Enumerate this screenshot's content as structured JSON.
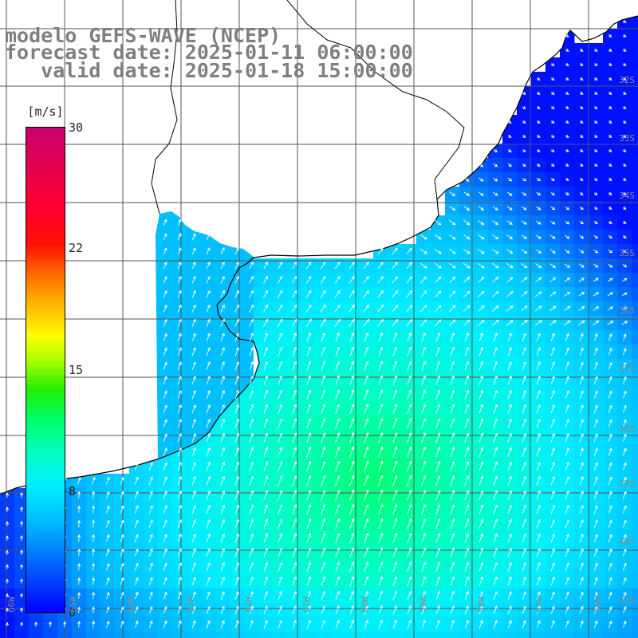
{
  "title": {
    "line1": "modelo GEFS-WAVE (NCEP)",
    "line2": "forecast date: 2025-01-11 06:00:00",
    "line3": "   valid date: 2025-01-18 15:00:00"
  },
  "colorbar": {
    "unit": "[m/s]",
    "ticks": [
      "30",
      "22",
      "15",
      "8",
      "0"
    ],
    "range": [
      0,
      30
    ]
  },
  "lat_labels": [
    "32S",
    "33S",
    "34S",
    "35S",
    "36S",
    "37S",
    "38S",
    "39S",
    "40S",
    "41S"
  ],
  "lon_labels": [
    "66W",
    "65W",
    "64W",
    "63W",
    "62W",
    "61W",
    "60W",
    "59W",
    "58W",
    "57W",
    "56W"
  ],
  "field": {
    "quantity": "wind speed and direction",
    "general_direction": "southwest to northeast",
    "speed_range_mps": [
      0,
      12
    ],
    "colors": {
      "land": "#ffffff",
      "grid": "#555555",
      "coast": "#000000",
      "arrows": "#ffffff"
    }
  }
}
